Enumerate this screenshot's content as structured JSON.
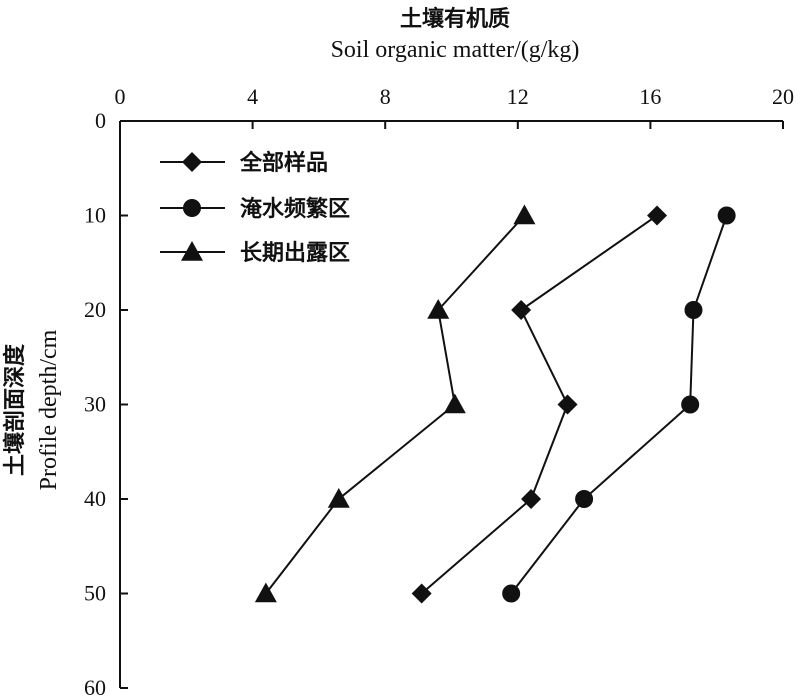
{
  "chart_data": {
    "type": "line",
    "title": "土壤有机质",
    "subtitle": "Soil organic matter/(g/kg)",
    "xlabel": "土壤有机质 Soil organic matter/(g/kg)",
    "ylabel_cn": "土壤剖面深度",
    "ylabel_en": "Profile depth/cm",
    "xlim": [
      0,
      20
    ],
    "ylim": [
      0,
      60
    ],
    "x_ticks": [
      "0",
      "4",
      "8",
      "12",
      "16",
      "20"
    ],
    "y_ticks": [
      "0",
      "10",
      "20",
      "30",
      "40",
      "50",
      "60"
    ],
    "x_axis_position": "top",
    "y_inverted": true,
    "grid": false,
    "legend_position": "top-left",
    "series": [
      {
        "name": "全部样品",
        "marker": "diamond",
        "points": [
          {
            "x": 16.2,
            "y": 10
          },
          {
            "x": 12.1,
            "y": 20
          },
          {
            "x": 13.5,
            "y": 30
          },
          {
            "x": 12.4,
            "y": 40
          },
          {
            "x": 9.1,
            "y": 50
          }
        ]
      },
      {
        "name": "淹水频繁区",
        "marker": "circle",
        "points": [
          {
            "x": 18.3,
            "y": 10
          },
          {
            "x": 17.3,
            "y": 20
          },
          {
            "x": 17.2,
            "y": 30
          },
          {
            "x": 14.0,
            "y": 40
          },
          {
            "x": 11.8,
            "y": 50
          }
        ]
      },
      {
        "name": "长期出露区",
        "marker": "triangle",
        "points": [
          {
            "x": 12.2,
            "y": 10
          },
          {
            "x": 9.6,
            "y": 20
          },
          {
            "x": 10.1,
            "y": 30
          },
          {
            "x": 6.6,
            "y": 40
          },
          {
            "x": 4.4,
            "y": 50
          }
        ]
      }
    ]
  }
}
